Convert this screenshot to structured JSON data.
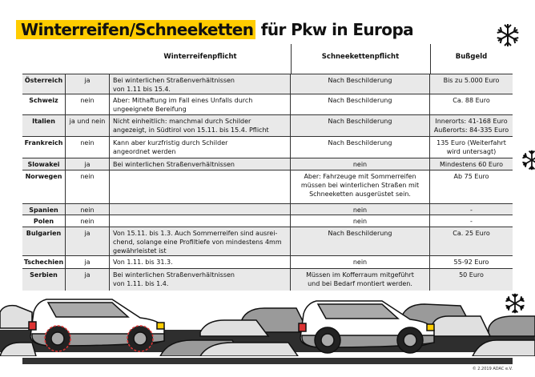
{
  "title": {
    "highlight": "Winterreifen/Schneeketten",
    "rest": " für Pkw in Europa"
  },
  "colors": {
    "accent": "#ffcc00",
    "row_shade": "#e9e9e9",
    "lines": "#333333"
  },
  "headers": {
    "country": "",
    "obligation": "",
    "winter_tyres": "Winterreifenpflicht",
    "snow_chains": "Schneekettenpflicht",
    "fine": "Bußgeld"
  },
  "rows": [
    {
      "country": "Österreich",
      "obligation": "ja",
      "detail": "Bei winterlichen Straßenverhältnissen\nvon 1.11 bis 15.4.",
      "chains": "Nach Beschilderung",
      "fine": "Bis zu 5.000 Euro"
    },
    {
      "country": "Schweiz",
      "obligation": "nein",
      "detail": "Aber: Mithaftung im Fall eines Unfalls durch\nungeeignete Bereifung",
      "chains": "Nach Beschilderung",
      "fine": "Ca. 88 Euro"
    },
    {
      "country": "Italien",
      "obligation": "ja und nein",
      "detail": "Nicht einheitlich: manchmal durch Schilder\nangezeigt, in Südtirol von 15.11. bis 15.4. Pflicht",
      "chains": "Nach Beschilderung",
      "fine": "Innerorts: 41-168 Euro\nAußerorts: 84-335 Euro"
    },
    {
      "country": "Frankreich",
      "obligation": "nein",
      "detail": "Kann aber kurzfristig durch Schilder\nangeordnet werden",
      "chains": "Nach Beschilderung",
      "fine": "135 Euro (Weiterfahrt\nwird untersagt)"
    },
    {
      "country": "Slowakei",
      "obligation": "ja",
      "detail": "Bei winterlichen Straßenverhältnissen",
      "chains": "nein",
      "fine": "Mindestens 60 Euro"
    },
    {
      "country": "Norwegen",
      "obligation": "nein",
      "detail": "",
      "chains": "Aber: Fahrzeuge mit Sommerreifen\nmüssen bei winterlichen Straßen mit\nSchneeketten ausgerüstet sein.",
      "fine": "Ab 75 Euro"
    },
    {
      "country": "Spanien",
      "obligation": "nein",
      "detail": "",
      "chains": "nein",
      "fine": "-"
    },
    {
      "country": "Polen",
      "obligation": "nein",
      "detail": "",
      "chains": "nein",
      "fine": "-"
    },
    {
      "country": "Bulgarien",
      "obligation": "ja",
      "detail": "Von 15.11. bis 1.3. Auch Sommerreifen sind ausrei-\nchend, solange eine Profiltiefe von mindestens 4mm\ngewährleistet ist",
      "chains": "Nach Beschilderung",
      "fine": "Ca. 25 Euro"
    },
    {
      "country": "Tschechien",
      "obligation": "ja",
      "detail": "Von 1.11. bis 31.3.",
      "chains": "nein",
      "fine": "55-92 Euro"
    },
    {
      "country": "Serbien",
      "obligation": "ja",
      "detail": "Bei winterlichen Straßenverhältnissen\nvon 1.11. bis 1.4.",
      "chains": "Müssen im Kofferraum mitgeführt\nund bei Bedarf montiert werden.",
      "fine": "50 Euro"
    }
  ],
  "icons": [
    "snowflake-icon",
    "car-with-snow-chains",
    "car"
  ],
  "copyright": "© 2.2019 ADAC e.V."
}
